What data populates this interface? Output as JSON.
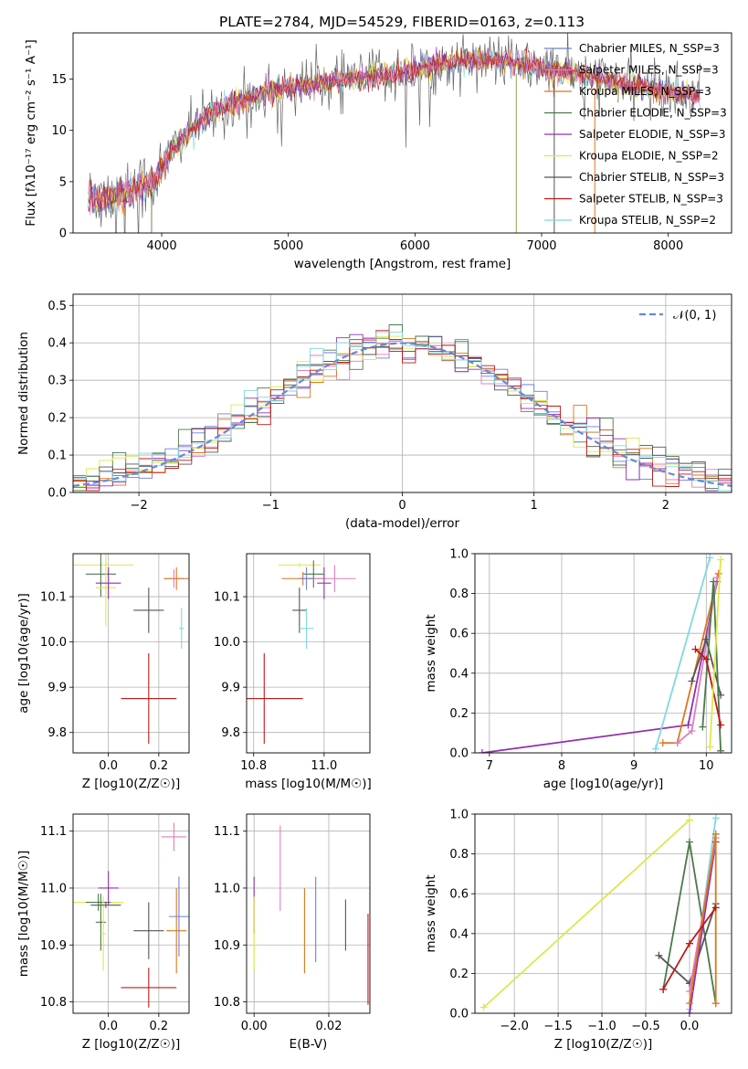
{
  "figure": {
    "title": "PLATE=2784, MJD=54529, FIBERID=0163, z=0.113"
  },
  "chart_data": [
    {
      "id": "spectrum",
      "type": "line",
      "xlabel": "wavelength [Angstrom, rest frame]",
      "ylabel": "Flux [fλ10⁻¹⁷ erg cm⁻² s⁻¹ A⁻¹]",
      "xlim": [
        3300,
        8500
      ],
      "ylim": [
        0,
        19.5
      ],
      "xticks": [
        4000,
        5000,
        6000,
        7000,
        8000
      ],
      "yticks": [
        0,
        5,
        10,
        15
      ],
      "grid": false,
      "legend_position": "right",
      "legend": [
        {
          "label": "Chabrier MILES, N_SSP=3",
          "color": "#6f7fd8"
        },
        {
          "label": "Salpeter MILES, N_SSP=3",
          "color": "#e07fc0"
        },
        {
          "label": "Kroupa MILES, N_SSP=3",
          "color": "#e0761a"
        },
        {
          "label": "Chabrier ELODIE, N_SSP=3",
          "color": "#4a7a4a"
        },
        {
          "label": "Salpeter ELODIE, N_SSP=3",
          "color": "#9030b0"
        },
        {
          "label": "Kroupa ELODIE, N_SSP=2",
          "color": "#dde84a"
        },
        {
          "label": "Chabrier STELIB, N_SSP=3",
          "color": "#555555"
        },
        {
          "label": "Salpeter STELIB, N_SSP=3",
          "color": "#c01818"
        },
        {
          "label": "Kroupa STELIB, N_SSP=2",
          "color": "#7fd8e0"
        }
      ],
      "continuum": {
        "x": [
          3420,
          3600,
          3800,
          3950,
          4100,
          4300,
          4500,
          4700,
          4900,
          5100,
          5300,
          5500,
          5700,
          5900,
          6100,
          6300,
          6500,
          6700,
          6900,
          7100,
          7300,
          7500,
          7700,
          7900,
          8100,
          8250
        ],
        "y": [
          3.3,
          3.6,
          4.3,
          5.2,
          8.5,
          10.8,
          12.3,
          13.2,
          13.9,
          14.3,
          14.7,
          15.0,
          15.3,
          15.7,
          16.2,
          16.6,
          16.9,
          16.8,
          16.3,
          15.9,
          15.4,
          14.9,
          14.4,
          14.0,
          13.6,
          13.3
        ]
      }
    },
    {
      "id": "residuals",
      "type": "line",
      "xlabel": "(data-model)/error",
      "ylabel": "Normed distribution",
      "xlim": [
        -2.5,
        2.5
      ],
      "ylim": [
        0,
        0.53
      ],
      "xticks": [
        -2,
        -1,
        0,
        1,
        2
      ],
      "yticks": [
        0.0,
        0.1,
        0.2,
        0.3,
        0.4,
        0.5
      ],
      "grid": true,
      "legend_position": "top-right",
      "legend": [
        {
          "label": "𝒩(0, 1)",
          "color": "#6688dd",
          "style": "dashed"
        }
      ],
      "model": "normal(0,1)"
    },
    {
      "id": "age-vs-Z",
      "type": "scatter",
      "xlabel": "Z [log10(Z/Z☉)]",
      "ylabel": "age  [log10(age/yr)]",
      "xlim": [
        -0.14,
        0.32
      ],
      "ylim": [
        9.755,
        10.195
      ],
      "xticks": [
        0.0,
        0.2
      ],
      "yticks": [
        9.8,
        9.9,
        10.0,
        10.1
      ],
      "grid": true,
      "points": [
        {
          "x": -0.03,
          "y": 10.17,
          "xerr": 0.13,
          "yerr": 0.005,
          "color": "#dde84a"
        },
        {
          "x": -0.03,
          "y": 10.15,
          "xerr": 0.06,
          "yerr": 0.05,
          "color": "#4a7a4a"
        },
        {
          "x": -0.01,
          "y": 10.12,
          "xerr": 0.04,
          "yerr": 0.085,
          "color": "#dde84a"
        },
        {
          "x": 0.0,
          "y": 10.13,
          "xerr": 0.05,
          "yerr": 0.035,
          "color": "#9030b0"
        },
        {
          "x": 0.16,
          "y": 10.07,
          "xerr": 0.06,
          "yerr": 0.05,
          "color": "#555555"
        },
        {
          "x": 0.16,
          "y": 9.875,
          "xerr": 0.11,
          "yerr": 0.1,
          "color": "#c01818"
        },
        {
          "x": 0.26,
          "y": 10.14,
          "xerr": 0.04,
          "yerr": 0.02,
          "color": "#e07fc0"
        },
        {
          "x": 0.27,
          "y": 10.14,
          "xerr": 0.05,
          "yerr": 0.025,
          "color": "#e0761a"
        },
        {
          "x": 0.29,
          "y": 10.03,
          "xerr": 0.01,
          "yerr": 0.045,
          "color": "#7fd8e0"
        }
      ]
    },
    {
      "id": "age-vs-mass",
      "type": "scatter",
      "xlabel": "mass [log10(M/M☉)]",
      "ylabel": "",
      "xlim": [
        10.78,
        11.13
      ],
      "ylim": [
        9.755,
        10.195
      ],
      "xticks": [
        10.8,
        11.0
      ],
      "yticks": [
        9.8,
        9.9,
        10.0,
        10.1
      ],
      "grid": true,
      "points": [
        {
          "x": 10.93,
          "y": 10.17,
          "xerr": 0.06,
          "yerr": 0.005,
          "color": "#dde84a"
        },
        {
          "x": 10.97,
          "y": 10.15,
          "xerr": 0.03,
          "yerr": 0.03,
          "color": "#4a7a4a"
        },
        {
          "x": 10.94,
          "y": 10.14,
          "xerr": 0.06,
          "yerr": 0.015,
          "color": "#e0761a"
        },
        {
          "x": 10.95,
          "y": 10.14,
          "xerr": 0.02,
          "yerr": 0.025,
          "color": "#6f7fd8"
        },
        {
          "x": 11.03,
          "y": 10.14,
          "xerr": 0.06,
          "yerr": 0.03,
          "color": "#e07fc0"
        },
        {
          "x": 11.0,
          "y": 10.13,
          "xerr": 0.02,
          "yerr": 0.035,
          "color": "#9030b0"
        },
        {
          "x": 10.93,
          "y": 10.07,
          "xerr": 0.02,
          "yerr": 0.05,
          "color": "#555555"
        },
        {
          "x": 10.95,
          "y": 10.03,
          "xerr": 0.02,
          "yerr": 0.045,
          "color": "#7fd8e0"
        },
        {
          "x": 10.83,
          "y": 9.875,
          "xerr": 0.11,
          "yerr": 0.1,
          "color": "#c01818"
        }
      ]
    },
    {
      "id": "mass-weight-vs-age",
      "type": "line",
      "xlabel": "age  [log10(age/yr)]",
      "ylabel": "mass weight",
      "xlim": [
        6.8,
        10.35
      ],
      "ylim": [
        0,
        1
      ],
      "xticks": [
        7,
        8,
        9,
        10
      ],
      "yticks": [
        0.0,
        0.2,
        0.4,
        0.6,
        0.8,
        1.0
      ],
      "grid": true,
      "series": [
        {
          "color": "#9030b0",
          "x": [
            6.9,
            9.75,
            10.15
          ],
          "y": [
            0.0,
            0.14,
            0.86
          ]
        },
        {
          "color": "#7fd8e0",
          "x": [
            9.3,
            10.05
          ],
          "y": [
            0.02,
            0.98
          ]
        },
        {
          "color": "#e0761a",
          "x": [
            9.4,
            9.6,
            10.17
          ],
          "y": [
            0.05,
            0.05,
            0.9
          ]
        },
        {
          "color": "#e07fc0",
          "x": [
            9.6,
            9.8,
            10.15
          ],
          "y": [
            0.05,
            0.11,
            0.88
          ]
        },
        {
          "color": "#555555",
          "x": [
            9.8,
            10.0,
            10.2
          ],
          "y": [
            0.36,
            0.57,
            0.29
          ]
        },
        {
          "color": "#4a7a4a",
          "x": [
            9.95,
            10.1,
            10.2
          ],
          "y": [
            0.13,
            0.86,
            0.01
          ]
        },
        {
          "color": "#c01818",
          "x": [
            9.85,
            10.0,
            10.2
          ],
          "y": [
            0.52,
            0.47,
            0.14
          ]
        },
        {
          "color": "#dde84a",
          "x": [
            10.05,
            10.2
          ],
          "y": [
            0.03,
            0.97
          ]
        }
      ]
    },
    {
      "id": "mass-vs-Z",
      "type": "scatter",
      "xlabel": "Z [log10(Z/Z☉)]",
      "ylabel": "mass [log10(M/M☉)]",
      "xlim": [
        -0.14,
        0.32
      ],
      "ylim": [
        10.78,
        11.13
      ],
      "xticks": [
        0.0,
        0.2
      ],
      "yticks": [
        10.8,
        10.9,
        11.0,
        11.1
      ],
      "grid": true,
      "points": [
        {
          "x": -0.04,
          "y": 10.975,
          "xerr": 0.1,
          "yerr": 0.005,
          "color": "#dde84a"
        },
        {
          "x": -0.04,
          "y": 10.975,
          "xerr": 0.05,
          "yerr": 0.015,
          "color": "#4a7a4a"
        },
        {
          "x": -0.03,
          "y": 10.94,
          "xerr": 0.02,
          "yerr": 0.05,
          "color": "#4a7a4a"
        },
        {
          "x": -0.02,
          "y": 10.92,
          "xerr": 0.01,
          "yerr": 0.065,
          "color": "#dde84a"
        },
        {
          "x": -0.01,
          "y": 10.97,
          "xerr": 0.06,
          "yerr": 0.005,
          "color": "#555555"
        },
        {
          "x": 0.0,
          "y": 11.0,
          "xerr": 0.04,
          "yerr": 0.03,
          "color": "#9030b0"
        },
        {
          "x": 0.16,
          "y": 10.925,
          "xerr": 0.06,
          "yerr": 0.05,
          "color": "#555555"
        },
        {
          "x": 0.16,
          "y": 10.825,
          "xerr": 0.11,
          "yerr": 0.035,
          "color": "#c01818"
        },
        {
          "x": 0.26,
          "y": 11.09,
          "xerr": 0.05,
          "yerr": 0.025,
          "color": "#e07fc0"
        },
        {
          "x": 0.27,
          "y": 10.925,
          "xerr": 0.04,
          "yerr": 0.075,
          "color": "#e0761a"
        },
        {
          "x": 0.28,
          "y": 10.95,
          "xerr": 0.04,
          "yerr": 0.07,
          "color": "#6f7fd8"
        }
      ]
    },
    {
      "id": "mass-vs-EBV",
      "type": "scatter",
      "xlabel": "E(B-V)",
      "ylabel": "",
      "xlim": [
        -0.002,
        0.031
      ],
      "ylim": [
        10.78,
        11.13
      ],
      "xticks": [
        0.0,
        0.02
      ],
      "yticks": [
        10.8,
        10.9,
        11.0,
        11.1
      ],
      "grid": true,
      "points": [
        {
          "x": 0.0,
          "y": 10.97,
          "xerr": 0.0,
          "yerr": 0.05,
          "color": "#9030b0"
        },
        {
          "x": 0.0,
          "y": 10.92,
          "xerr": 0.0,
          "yerr": 0.065,
          "color": "#dde84a"
        },
        {
          "x": 0.007,
          "y": 11.035,
          "xerr": 0.0,
          "yerr": 0.075,
          "color": "#e07fc0"
        },
        {
          "x": 0.0135,
          "y": 10.925,
          "xerr": 0.0,
          "yerr": 0.075,
          "color": "#e0761a"
        },
        {
          "x": 0.0165,
          "y": 10.945,
          "xerr": 0.0,
          "yerr": 0.075,
          "color": "#6f7fd8"
        },
        {
          "x": 0.0245,
          "y": 10.935,
          "xerr": 0.0,
          "yerr": 0.045,
          "color": "#555555"
        },
        {
          "x": 0.0305,
          "y": 10.875,
          "xerr": 0.0,
          "yerr": 0.08,
          "color": "#c01818"
        }
      ]
    },
    {
      "id": "mass-weight-vs-Z",
      "type": "line",
      "xlabel": "Z [log10(Z/Z☉)]",
      "ylabel": "mass weight",
      "xlim": [
        -2.45,
        0.48
      ],
      "ylim": [
        0,
        1
      ],
      "xticks": [
        -2.0,
        -1.5,
        -1.0,
        -0.5,
        0.0
      ],
      "yticks": [
        0.0,
        0.2,
        0.4,
        0.6,
        0.8,
        1.0
      ],
      "grid": true,
      "series": [
        {
          "color": "#dde84a",
          "x": [
            -2.35,
            0.0
          ],
          "y": [
            0.03,
            0.97
          ]
        },
        {
          "color": "#7fd8e0",
          "x": [
            0.0,
            0.3
          ],
          "y": [
            0.02,
            0.98
          ]
        },
        {
          "color": "#4a7a4a",
          "x": [
            -0.3,
            0.0,
            0.3
          ],
          "y": [
            0.12,
            0.86,
            0.05
          ]
        },
        {
          "color": "#555555",
          "x": [
            -0.35,
            0.0,
            0.3
          ],
          "y": [
            0.29,
            0.15,
            0.55
          ]
        },
        {
          "color": "#9030b0",
          "x": [
            0.0,
            0.3
          ],
          "y": [
            0.0,
            0.86
          ]
        },
        {
          "color": "#e07fc0",
          "x": [
            0.0,
            0.3
          ],
          "y": [
            0.11,
            0.88
          ]
        },
        {
          "color": "#e0761a",
          "x": [
            0.0,
            0.3,
            0.3
          ],
          "y": [
            0.05,
            0.9,
            0.05
          ]
        },
        {
          "color": "#c01818",
          "x": [
            -0.3,
            0.0,
            0.3
          ],
          "y": [
            0.12,
            0.35,
            0.53
          ]
        }
      ]
    }
  ]
}
